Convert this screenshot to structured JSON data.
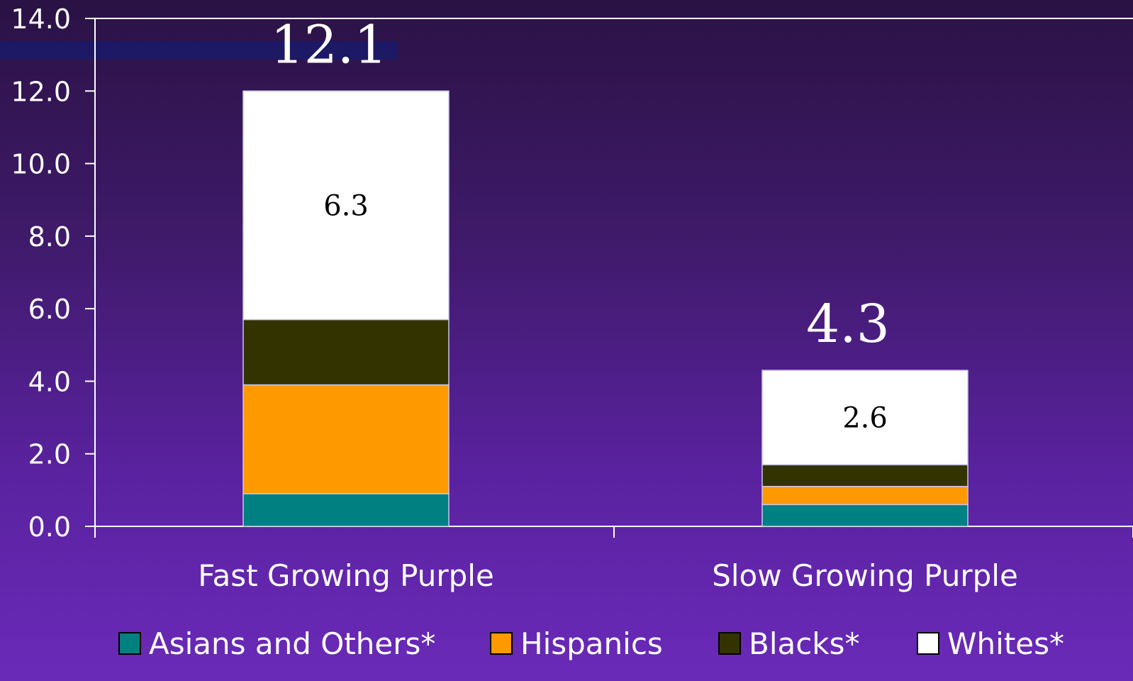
{
  "chart_data": {
    "type": "bar",
    "stacked": true,
    "categories": [
      "Fast Growing Purple",
      "Slow Growing Purple"
    ],
    "series": [
      {
        "name": "Asians and Others*",
        "values": [
          0.9,
          0.6
        ],
        "color": "#008080"
      },
      {
        "name": "Hispanics",
        "values": [
          3.0,
          0.5
        ],
        "color": "#ff9900"
      },
      {
        "name": "Blacks*",
        "values": [
          1.8,
          0.6
        ],
        "color": "#333300"
      },
      {
        "name": "Whites*",
        "values": [
          6.3,
          2.6
        ],
        "color": "#ffffff"
      }
    ],
    "totals": [
      "12.1",
      "4.3"
    ],
    "segment_labels": [
      {
        "series": 3,
        "category": 0,
        "text": "6.3"
      },
      {
        "series": 3,
        "category": 1,
        "text": "2.6"
      }
    ],
    "yticks": [
      "0.0",
      "2.0",
      "4.0",
      "6.0",
      "8.0",
      "10.0",
      "12.0",
      "14.0"
    ],
    "ylim": [
      0,
      14
    ],
    "grid": false,
    "legend": "bottom"
  }
}
